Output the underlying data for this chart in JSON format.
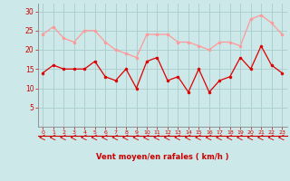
{
  "x": [
    0,
    1,
    2,
    3,
    4,
    5,
    6,
    7,
    8,
    9,
    10,
    11,
    12,
    13,
    14,
    15,
    16,
    17,
    18,
    19,
    20,
    21,
    22,
    23
  ],
  "rafales": [
    24,
    26,
    23,
    22,
    25,
    25,
    22,
    20,
    19,
    18,
    24,
    24,
    24,
    22,
    22,
    21,
    20,
    22,
    22,
    21,
    28,
    29,
    27,
    24
  ],
  "moyen": [
    14,
    16,
    15,
    15,
    15,
    17,
    13,
    12,
    15,
    10,
    17,
    18,
    12,
    13,
    9,
    15,
    9,
    12,
    13,
    18,
    15,
    21,
    16,
    14
  ],
  "bg_color": "#cce8e8",
  "grid_color": "#aacccc",
  "line_color_rafales": "#ff9999",
  "line_color_moyen": "#dd0000",
  "marker_color_rafales": "#ff9999",
  "marker_color_moyen": "#dd0000",
  "xlabel": "Vent moyen/en rafales ( km/h )",
  "xlabel_color": "#cc0000",
  "arrow_color": "#cc0000",
  "axis_line_color": "#cc0000",
  "tick_color": "#cc0000",
  "ylim": [
    0,
    32
  ],
  "yticks": [
    5,
    10,
    15,
    20,
    25,
    30
  ],
  "xlim": [
    -0.5,
    23.5
  ]
}
